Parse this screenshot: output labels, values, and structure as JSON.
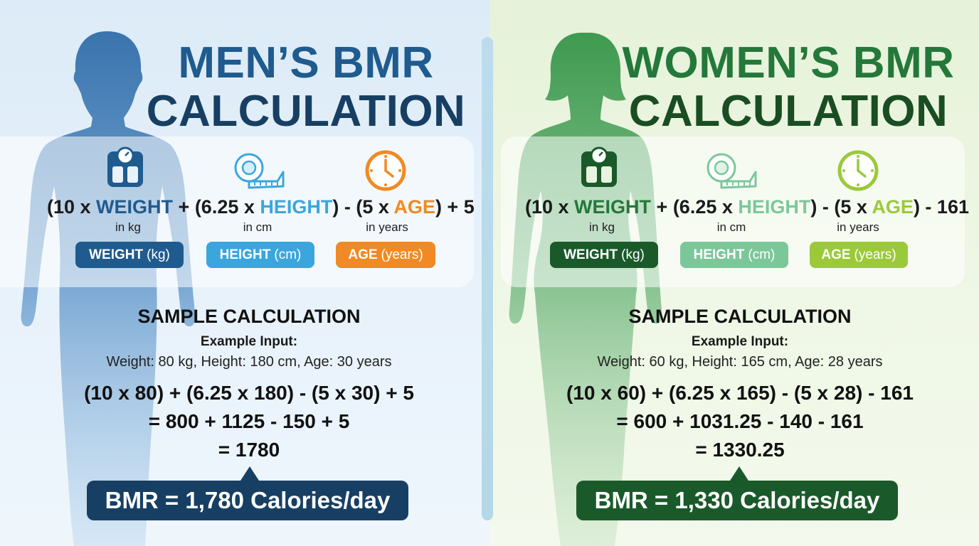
{
  "men": {
    "title_line1": "MEN’S BMR",
    "title_line2": "CALCULATION",
    "formula": {
      "open1": "(10 x ",
      "weight": "WEIGHT",
      "mid1": " + (6.25 x ",
      "height": "HEIGHT",
      "mid2": ") - (5 x ",
      "age": "AGE",
      "end": ") + 5"
    },
    "sub_weight": "in kg",
    "sub_height": "in cm",
    "sub_age": "in years",
    "pills": {
      "weight_label": "WEIGHT",
      "weight_unit": "(kg)",
      "height_label": "HEIGHT",
      "height_unit": "(cm)",
      "age_label": "AGE",
      "age_unit": "(years)"
    },
    "sample_title": "SAMPLE CALCULATION",
    "example_label": "Example Input:",
    "example_values": "Weight: 80 kg, Height: 180 cm, Age: 30 years",
    "calc_line1": "(10 x 80) + (6.25 x 180) - (5 x 30) + 5",
    "calc_line2": "= 800 + 1125 - 150 + 5",
    "calc_line3": "= 1780",
    "result": "BMR = 1,780 Calories/day",
    "colors": {
      "dark": "#173f63",
      "weight": "#1f5b8e",
      "height": "#3aa6dd",
      "age": "#f08a24"
    }
  },
  "women": {
    "title_line1": "WOMEN’S BMR",
    "title_line2": "CALCULATION",
    "formula": {
      "open1": "(10 x ",
      "weight": "WEIGHT",
      "mid1": " + (6.25 x ",
      "height": "HEIGHT",
      "mid2": ") - (5 x ",
      "age": "AGE",
      "end": ") - 161"
    },
    "sub_weight": "in kg",
    "sub_height": "in cm",
    "sub_age": "in years",
    "pills": {
      "weight_label": "WEIGHT",
      "weight_unit": "(kg)",
      "height_label": "HEIGHT",
      "height_unit": "(cm)",
      "age_label": "AGE",
      "age_unit": "(years)"
    },
    "sample_title": "SAMPLE CALCULATION",
    "example_label": "Example Input:",
    "example_values": "Weight: 60 kg, Height: 165 cm, Age: 28 years",
    "calc_line1": "(10 x 60) + (6.25 x 165) - (5 x 28) - 161",
    "calc_line2": "= 600 + 1031.25 - 140 - 161",
    "calc_line3": "= 1330.25",
    "result": "BMR = 1,330 Calories/day",
    "colors": {
      "dark": "#1a5a2a",
      "weight": "#24783a",
      "height": "#7cc79a",
      "age": "#9bc93a"
    }
  },
  "icons": [
    "scale-icon",
    "tape-measure-icon",
    "clock-icon"
  ]
}
